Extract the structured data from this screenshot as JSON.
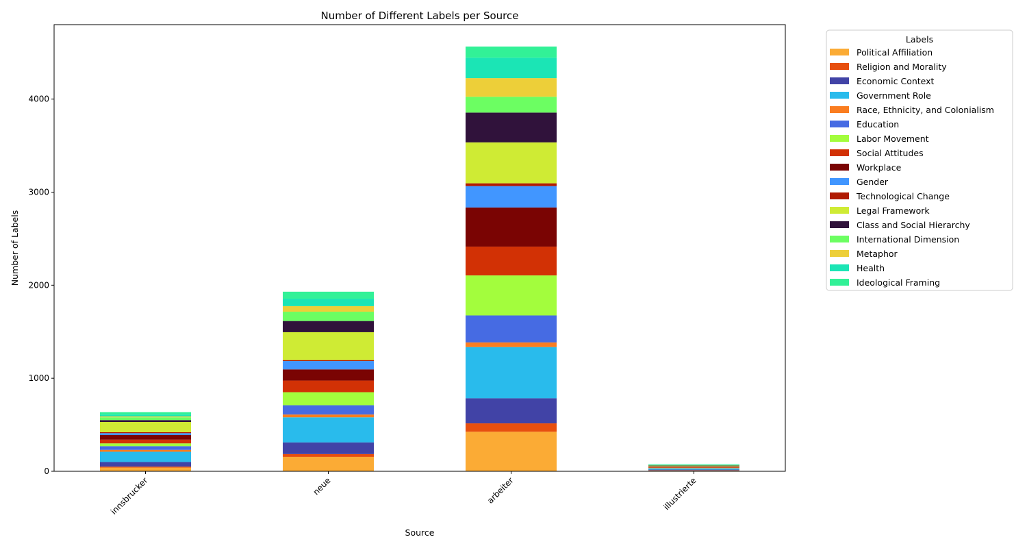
{
  "chart_data": {
    "type": "bar",
    "stacked": true,
    "title": "Number of Different Labels per Source",
    "xlabel": "Source",
    "ylabel": "Number of Labels",
    "categories": [
      "innsbrucker",
      "neue",
      "arbeiter",
      "illustrierte"
    ],
    "ylim": [
      0,
      4800
    ],
    "yticks": [
      0,
      1000,
      2000,
      3000,
      4000
    ],
    "grid": false,
    "legend_title": "Labels",
    "legend_position": "outside-top-right",
    "series": [
      {
        "name": "Political Affiliation",
        "color": "#fbab35",
        "values": [
          40,
          155,
          425,
          8
        ]
      },
      {
        "name": "Religion and Morality",
        "color": "#e74f0e",
        "values": [
          10,
          30,
          90,
          2
        ]
      },
      {
        "name": "Economic Context",
        "color": "#4143a6",
        "values": [
          50,
          125,
          270,
          8
        ]
      },
      {
        "name": "Government Role",
        "color": "#29bbec",
        "values": [
          110,
          270,
          550,
          10
        ]
      },
      {
        "name": "Race, Ethnicity, and Colonialism",
        "color": "#fa7d20",
        "values": [
          20,
          30,
          50,
          2
        ]
      },
      {
        "name": "Education",
        "color": "#466be3",
        "values": [
          40,
          100,
          290,
          4
        ]
      },
      {
        "name": "Labor Movement",
        "color": "#a3fd3d",
        "values": [
          30,
          140,
          430,
          4
        ]
      },
      {
        "name": "Social Attitudes",
        "color": "#d23105",
        "values": [
          40,
          125,
          310,
          6
        ]
      },
      {
        "name": "Workplace",
        "color": "#7a0403",
        "values": [
          50,
          120,
          420,
          4
        ]
      },
      {
        "name": "Gender",
        "color": "#4196ff",
        "values": [
          20,
          90,
          230,
          2
        ]
      },
      {
        "name": "Technological Change",
        "color": "#b01b03",
        "values": [
          10,
          10,
          30,
          2
        ]
      },
      {
        "name": "Legal Framework",
        "color": "#cfeb34",
        "values": [
          110,
          300,
          440,
          6
        ]
      },
      {
        "name": "Class and Social Hierarchy",
        "color": "#30123b",
        "values": [
          20,
          120,
          320,
          4
        ]
      },
      {
        "name": "International Dimension",
        "color": "#6cfe62",
        "values": [
          30,
          100,
          170,
          4
        ]
      },
      {
        "name": "Metaphor",
        "color": "#edcf39",
        "values": [
          10,
          60,
          200,
          2
        ]
      },
      {
        "name": "Health",
        "color": "#1be5b5",
        "values": [
          20,
          80,
          220,
          4
        ]
      },
      {
        "name": "Ideological Framing",
        "color": "#32f197",
        "values": [
          25,
          75,
          120,
          4
        ]
      }
    ]
  }
}
